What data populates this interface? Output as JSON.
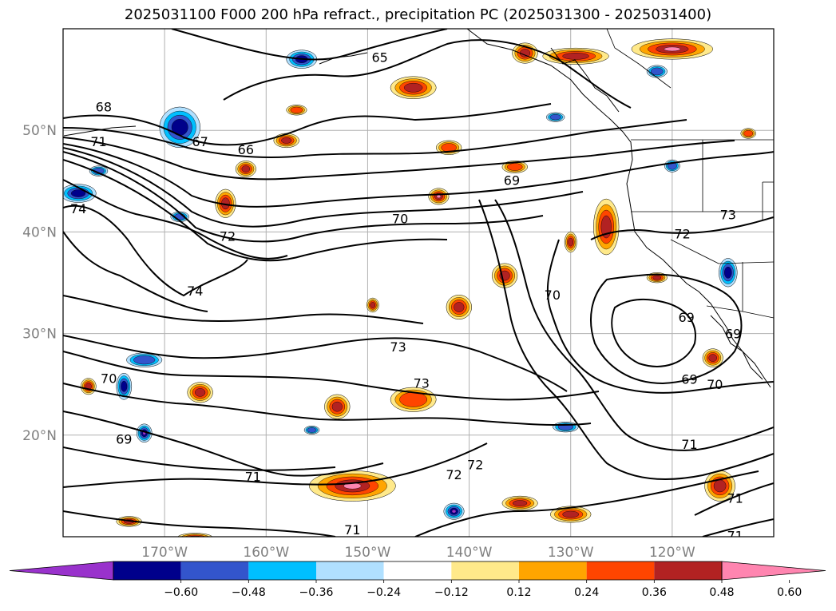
{
  "chart_data": {
    "type": "map-contour",
    "title": "2025031100 F000 200 hPa refract., precipitation PC (2025031300 - 2025031400)",
    "map_extent": {
      "lon": [
        -180,
        -110
      ],
      "lat": [
        10,
        60
      ]
    },
    "gridlines": true,
    "lat_ticks": [
      {
        "value": 50,
        "label": "50°N"
      },
      {
        "value": 40,
        "label": "40°N"
      },
      {
        "value": 30,
        "label": "30°N"
      },
      {
        "value": 20,
        "label": "20°N"
      }
    ],
    "lon_ticks": [
      {
        "value": -170,
        "label": "170°W"
      },
      {
        "value": -160,
        "label": "160°W"
      },
      {
        "value": -150,
        "label": "150°W"
      },
      {
        "value": -140,
        "label": "140°W"
      },
      {
        "value": -130,
        "label": "130°W"
      },
      {
        "value": -120,
        "label": "120°W"
      }
    ],
    "colorbar": {
      "extend": "both",
      "boundaries": [
        "−0.60",
        "−0.48",
        "−0.36",
        "−0.24",
        "−0.12",
        "0.12",
        "0.24",
        "0.36",
        "0.48",
        "0.60"
      ],
      "colors": [
        "#9932cc",
        "#00008b",
        "#3355cc",
        "#00bfff",
        "#b0e0ff",
        "#ffffff",
        "#ffe98a",
        "#ffa500",
        "#ff4500",
        "#b22222",
        "#ff85b0"
      ]
    },
    "contour_labels": [
      {
        "text": "65",
        "lon": -148.8,
        "lat": 57.1
      },
      {
        "text": "68",
        "lon": -176.0,
        "lat": 52.2
      },
      {
        "text": "67",
        "lon": -166.5,
        "lat": 48.8
      },
      {
        "text": "66",
        "lon": -162.0,
        "lat": 48.0
      },
      {
        "text": "71",
        "lon": -176.5,
        "lat": 48.8
      },
      {
        "text": "74",
        "lon": -178.5,
        "lat": 42.2
      },
      {
        "text": "72",
        "lon": -163.8,
        "lat": 39.5
      },
      {
        "text": "70",
        "lon": -146.8,
        "lat": 41.2
      },
      {
        "text": "69",
        "lon": -135.8,
        "lat": 45.0
      },
      {
        "text": "73",
        "lon": -114.5,
        "lat": 41.6
      },
      {
        "text": "72",
        "lon": -119.0,
        "lat": 39.7
      },
      {
        "text": "74",
        "lon": -167.0,
        "lat": 34.1
      },
      {
        "text": "70",
        "lon": -131.8,
        "lat": 33.7
      },
      {
        "text": "69",
        "lon": -118.6,
        "lat": 31.5
      },
      {
        "text": "69",
        "lon": -114.0,
        "lat": 29.9
      },
      {
        "text": "73",
        "lon": -147.0,
        "lat": 28.6
      },
      {
        "text": "73",
        "lon": -144.7,
        "lat": 25.0
      },
      {
        "text": "69",
        "lon": -118.3,
        "lat": 25.4
      },
      {
        "text": "70",
        "lon": -175.5,
        "lat": 25.5
      },
      {
        "text": "70",
        "lon": -115.8,
        "lat": 24.9
      },
      {
        "text": "69",
        "lon": -174.0,
        "lat": 19.5
      },
      {
        "text": "71",
        "lon": -118.3,
        "lat": 19.0
      },
      {
        "text": "72",
        "lon": -141.5,
        "lat": 16.0
      },
      {
        "text": "72",
        "lon": -139.4,
        "lat": 17.0
      },
      {
        "text": "71",
        "lon": -161.3,
        "lat": 15.8
      },
      {
        "text": "71",
        "lon": -113.8,
        "lat": 13.7
      },
      {
        "text": "71",
        "lon": -151.5,
        "lat": 10.6
      },
      {
        "text": "71",
        "lon": -113.8,
        "lat": 10.0
      }
    ],
    "precip_blobs": [
      {
        "lon": -145.5,
        "lat": 54.2,
        "w": 4.5,
        "h": 2.2,
        "sign": "pos",
        "level": 3
      },
      {
        "lon": -143.0,
        "lat": 43.5,
        "w": 2.0,
        "h": 1.6,
        "sign": "pos",
        "level": 4
      },
      {
        "lon": -158.0,
        "lat": 49.0,
        "w": 2.5,
        "h": 1.4,
        "sign": "pos",
        "level": 3
      },
      {
        "lon": -162.0,
        "lat": 46.2,
        "w": 2.0,
        "h": 1.6,
        "sign": "pos",
        "level": 3
      },
      {
        "lon": -164.0,
        "lat": 42.8,
        "w": 2.0,
        "h": 2.8,
        "sign": "pos",
        "level": 3
      },
      {
        "lon": -142.0,
        "lat": 48.3,
        "w": 2.5,
        "h": 1.4,
        "sign": "pos",
        "level": 2
      },
      {
        "lon": -135.5,
        "lat": 46.4,
        "w": 2.5,
        "h": 1.2,
        "sign": "pos",
        "level": 2
      },
      {
        "lon": -126.5,
        "lat": 40.5,
        "w": 2.5,
        "h": 5.5,
        "sign": "pos",
        "level": 3
      },
      {
        "lon": -136.5,
        "lat": 35.7,
        "w": 2.5,
        "h": 2.4,
        "sign": "pos",
        "level": 3
      },
      {
        "lon": -141.0,
        "lat": 32.6,
        "w": 2.5,
        "h": 2.4,
        "sign": "pos",
        "level": 3
      },
      {
        "lon": -149.5,
        "lat": 32.8,
        "w": 1.2,
        "h": 1.4,
        "sign": "pos",
        "level": 3
      },
      {
        "lon": -145.5,
        "lat": 23.5,
        "w": 4.5,
        "h": 2.4,
        "sign": "pos",
        "level": 2
      },
      {
        "lon": -153.0,
        "lat": 22.8,
        "w": 2.5,
        "h": 2.4,
        "sign": "pos",
        "level": 3
      },
      {
        "lon": -166.5,
        "lat": 24.2,
        "w": 2.5,
        "h": 2.0,
        "sign": "pos",
        "level": 3
      },
      {
        "lon": -177.5,
        "lat": 24.8,
        "w": 1.5,
        "h": 1.6,
        "sign": "pos",
        "level": 3
      },
      {
        "lon": -151.5,
        "lat": 15.0,
        "w": 8.5,
        "h": 3.0,
        "sign": "pos",
        "level": 4
      },
      {
        "lon": -135.0,
        "lat": 13.3,
        "w": 3.5,
        "h": 1.4,
        "sign": "pos",
        "level": 3
      },
      {
        "lon": -130.0,
        "lat": 12.2,
        "w": 4.0,
        "h": 1.6,
        "sign": "pos",
        "level": 3
      },
      {
        "lon": -115.3,
        "lat": 15.0,
        "w": 3.0,
        "h": 3.0,
        "sign": "pos",
        "level": 3
      },
      {
        "lon": -173.5,
        "lat": 11.5,
        "w": 2.5,
        "h": 1.0,
        "sign": "pos",
        "level": 3
      },
      {
        "lon": -167.0,
        "lat": 9.9,
        "w": 3.5,
        "h": 0.9,
        "sign": "pos",
        "level": 3
      },
      {
        "lon": -116.0,
        "lat": 27.6,
        "w": 2.0,
        "h": 1.8,
        "sign": "pos",
        "level": 3
      },
      {
        "lon": -121.5,
        "lat": 35.5,
        "w": 2.0,
        "h": 1.0,
        "sign": "pos",
        "level": 3
      },
      {
        "lon": -130.0,
        "lat": 39.0,
        "w": 1.2,
        "h": 2.0,
        "sign": "pos",
        "level": 3
      },
      {
        "lon": -129.5,
        "lat": 57.3,
        "w": 6.5,
        "h": 1.6,
        "sign": "pos",
        "level": 3
      },
      {
        "lon": -120.0,
        "lat": 58.0,
        "w": 8.0,
        "h": 2.0,
        "sign": "pos",
        "level": 4
      },
      {
        "lon": -134.5,
        "lat": 57.6,
        "w": 2.5,
        "h": 2.0,
        "sign": "pos",
        "level": 3
      },
      {
        "lon": -112.5,
        "lat": 49.7,
        "w": 1.5,
        "h": 1.0,
        "sign": "pos",
        "level": 2
      },
      {
        "lon": -157.0,
        "lat": 52.0,
        "w": 2.0,
        "h": 1.0,
        "sign": "pos",
        "level": 2
      },
      {
        "lon": -168.5,
        "lat": 50.3,
        "w": 4.0,
        "h": 4.0,
        "sign": "neg",
        "level": 3
      },
      {
        "lon": -178.5,
        "lat": 43.8,
        "w": 3.5,
        "h": 1.8,
        "sign": "neg",
        "level": 3
      },
      {
        "lon": -156.5,
        "lat": 57.0,
        "w": 3.0,
        "h": 1.8,
        "sign": "neg",
        "level": 3
      },
      {
        "lon": -176.5,
        "lat": 46.0,
        "w": 1.8,
        "h": 1.0,
        "sign": "neg",
        "level": 2
      },
      {
        "lon": -168.5,
        "lat": 41.5,
        "w": 1.8,
        "h": 1.0,
        "sign": "neg",
        "level": 2
      },
      {
        "lon": -174.0,
        "lat": 24.8,
        "w": 1.5,
        "h": 2.6,
        "sign": "neg",
        "level": 3
      },
      {
        "lon": -172.0,
        "lat": 27.4,
        "w": 3.5,
        "h": 1.4,
        "sign": "neg",
        "level": 2
      },
      {
        "lon": -172.0,
        "lat": 20.2,
        "w": 1.5,
        "h": 1.8,
        "sign": "neg",
        "level": 4
      },
      {
        "lon": -141.5,
        "lat": 12.5,
        "w": 2.0,
        "h": 1.6,
        "sign": "neg",
        "level": 4
      },
      {
        "lon": -114.5,
        "lat": 36.0,
        "w": 1.8,
        "h": 2.8,
        "sign": "neg",
        "level": 3
      },
      {
        "lon": -130.5,
        "lat": 20.8,
        "w": 2.5,
        "h": 1.0,
        "sign": "neg",
        "level": 2
      },
      {
        "lon": -120.0,
        "lat": 46.5,
        "w": 1.5,
        "h": 1.2,
        "sign": "neg",
        "level": 2
      },
      {
        "lon": -155.5,
        "lat": 20.5,
        "w": 1.5,
        "h": 0.8,
        "sign": "neg",
        "level": 2
      },
      {
        "lon": -131.5,
        "lat": 51.3,
        "w": 1.8,
        "h": 0.9,
        "sign": "neg",
        "level": 2
      },
      {
        "lon": -121.5,
        "lat": 55.8,
        "w": 2.0,
        "h": 1.2,
        "sign": "neg",
        "level": 2
      }
    ]
  }
}
